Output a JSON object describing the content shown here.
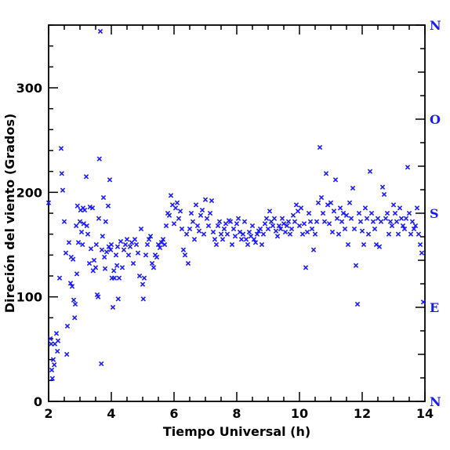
{
  "chart_data": {
    "type": "scatter",
    "title": "",
    "xlabel": "Tiempo Universal (h)",
    "ylabel": "Direción del viento (Grados)",
    "xlim": [
      2,
      14
    ],
    "ylim": [
      0,
      360
    ],
    "x_ticks": [
      "2",
      "4",
      "6",
      "8",
      "10",
      "12",
      "14"
    ],
    "y_ticks": [
      "0",
      "100",
      "200",
      "300"
    ],
    "right_axis_labels": [
      {
        "label": "N",
        "value": 0
      },
      {
        "label": "E",
        "value": 90
      },
      {
        "label": "S",
        "value": 180
      },
      {
        "label": "O",
        "value": 270
      },
      {
        "label": "N",
        "value": 360
      }
    ],
    "marker": "x",
    "marker_color": "#1a1aff",
    "grid": false,
    "points": [
      [
        2.0,
        190
      ],
      [
        2.05,
        60
      ],
      [
        2.08,
        55
      ],
      [
        2.1,
        30
      ],
      [
        2.12,
        22
      ],
      [
        2.15,
        40
      ],
      [
        2.18,
        35
      ],
      [
        2.2,
        55
      ],
      [
        2.25,
        65
      ],
      [
        2.28,
        48
      ],
      [
        2.3,
        58
      ],
      [
        2.35,
        118
      ],
      [
        2.4,
        242
      ],
      [
        2.42,
        218
      ],
      [
        2.45,
        202
      ],
      [
        2.5,
        172
      ],
      [
        2.55,
        142
      ],
      [
        2.58,
        45
      ],
      [
        2.6,
        72
      ],
      [
        2.65,
        152
      ],
      [
        2.7,
        113
      ],
      [
        2.72,
        138
      ],
      [
        2.75,
        110
      ],
      [
        2.78,
        136
      ],
      [
        2.8,
        97
      ],
      [
        2.83,
        80
      ],
      [
        2.85,
        93
      ],
      [
        2.88,
        168
      ],
      [
        2.9,
        122
      ],
      [
        2.92,
        187
      ],
      [
        2.95,
        152
      ],
      [
        3.0,
        172
      ],
      [
        3.02,
        183
      ],
      [
        3.05,
        162
      ],
      [
        3.08,
        150
      ],
      [
        3.1,
        185
      ],
      [
        3.12,
        170
      ],
      [
        3.15,
        183
      ],
      [
        3.2,
        215
      ],
      [
        3.22,
        168
      ],
      [
        3.25,
        160
      ],
      [
        3.3,
        132
      ],
      [
        3.32,
        186
      ],
      [
        3.35,
        146
      ],
      [
        3.4,
        185
      ],
      [
        3.42,
        125
      ],
      [
        3.45,
        135
      ],
      [
        3.5,
        128
      ],
      [
        3.52,
        150
      ],
      [
        3.55,
        102
      ],
      [
        3.58,
        100
      ],
      [
        3.6,
        175
      ],
      [
        3.62,
        232
      ],
      [
        3.65,
        354
      ],
      [
        3.68,
        36
      ],
      [
        3.7,
        145
      ],
      [
        3.72,
        158
      ],
      [
        3.75,
        195
      ],
      [
        3.78,
        138
      ],
      [
        3.8,
        127
      ],
      [
        3.82,
        172
      ],
      [
        3.85,
        143
      ],
      [
        3.9,
        187
      ],
      [
        3.92,
        148
      ],
      [
        3.95,
        212
      ],
      [
        3.98,
        145
      ],
      [
        4.0,
        150
      ],
      [
        4.02,
        118
      ],
      [
        4.05,
        90
      ],
      [
        4.08,
        125
      ],
      [
        4.1,
        118
      ],
      [
        4.15,
        140
      ],
      [
        4.18,
        130
      ],
      [
        4.2,
        148
      ],
      [
        4.22,
        98
      ],
      [
        4.25,
        118
      ],
      [
        4.3,
        153
      ],
      [
        4.35,
        128
      ],
      [
        4.4,
        145
      ],
      [
        4.45,
        150
      ],
      [
        4.5,
        155
      ],
      [
        4.55,
        140
      ],
      [
        4.6,
        148
      ],
      [
        4.65,
        152
      ],
      [
        4.7,
        132
      ],
      [
        4.75,
        155
      ],
      [
        4.8,
        150
      ],
      [
        4.85,
        142
      ],
      [
        4.9,
        120
      ],
      [
        4.95,
        165
      ],
      [
        5.0,
        112
      ],
      [
        5.02,
        98
      ],
      [
        5.05,
        118
      ],
      [
        5.1,
        140
      ],
      [
        5.15,
        150
      ],
      [
        5.2,
        155
      ],
      [
        5.25,
        158
      ],
      [
        5.3,
        132
      ],
      [
        5.35,
        128
      ],
      [
        5.4,
        140
      ],
      [
        5.45,
        138
      ],
      [
        5.5,
        150
      ],
      [
        5.55,
        147
      ],
      [
        5.6,
        152
      ],
      [
        5.65,
        155
      ],
      [
        5.7,
        150
      ],
      [
        5.75,
        168
      ],
      [
        5.8,
        180
      ],
      [
        5.85,
        178
      ],
      [
        5.9,
        197
      ],
      [
        5.95,
        188
      ],
      [
        6.0,
        170
      ],
      [
        6.05,
        185
      ],
      [
        6.1,
        190
      ],
      [
        6.15,
        175
      ],
      [
        6.2,
        182
      ],
      [
        6.25,
        165
      ],
      [
        6.3,
        145
      ],
      [
        6.35,
        140
      ],
      [
        6.4,
        160
      ],
      [
        6.45,
        132
      ],
      [
        6.5,
        165
      ],
      [
        6.55,
        180
      ],
      [
        6.6,
        172
      ],
      [
        6.65,
        155
      ],
      [
        6.7,
        188
      ],
      [
        6.75,
        168
      ],
      [
        6.8,
        163
      ],
      [
        6.85,
        178
      ],
      [
        6.9,
        183
      ],
      [
        6.95,
        160
      ],
      [
        7.0,
        193
      ],
      [
        7.05,
        175
      ],
      [
        7.1,
        168
      ],
      [
        7.15,
        180
      ],
      [
        7.2,
        192
      ],
      [
        7.25,
        162
      ],
      [
        7.3,
        155
      ],
      [
        7.35,
        150
      ],
      [
        7.4,
        168
      ],
      [
        7.45,
        172
      ],
      [
        7.5,
        160
      ],
      [
        7.55,
        155
      ],
      [
        7.6,
        165
      ],
      [
        7.65,
        170
      ],
      [
        7.7,
        160
      ],
      [
        7.75,
        173
      ],
      [
        7.8,
        172
      ],
      [
        7.85,
        150
      ],
      [
        7.9,
        165
      ],
      [
        7.95,
        158
      ],
      [
        8.0,
        170
      ],
      [
        8.05,
        175
      ],
      [
        8.1,
        162
      ],
      [
        8.15,
        155
      ],
      [
        8.2,
        160
      ],
      [
        8.25,
        172
      ],
      [
        8.3,
        155
      ],
      [
        8.35,
        150
      ],
      [
        8.4,
        162
      ],
      [
        8.45,
        158
      ],
      [
        8.5,
        168
      ],
      [
        8.55,
        155
      ],
      [
        8.6,
        152
      ],
      [
        8.65,
        160
      ],
      [
        8.7,
        163
      ],
      [
        8.75,
        165
      ],
      [
        8.8,
        150
      ],
      [
        8.85,
        160
      ],
      [
        8.9,
        170
      ],
      [
        8.95,
        175
      ],
      [
        9.0,
        165
      ],
      [
        9.05,
        182
      ],
      [
        9.1,
        172
      ],
      [
        9.15,
        168
      ],
      [
        9.2,
        175
      ],
      [
        9.25,
        163
      ],
      [
        9.3,
        158
      ],
      [
        9.35,
        168
      ],
      [
        9.4,
        165
      ],
      [
        9.45,
        175
      ],
      [
        9.5,
        170
      ],
      [
        9.55,
        162
      ],
      [
        9.6,
        168
      ],
      [
        9.65,
        172
      ],
      [
        9.7,
        160
      ],
      [
        9.75,
        165
      ],
      [
        9.8,
        178
      ],
      [
        9.85,
        172
      ],
      [
        9.9,
        188
      ],
      [
        9.95,
        182
      ],
      [
        10.0,
        168
      ],
      [
        10.05,
        185
      ],
      [
        10.1,
        160
      ],
      [
        10.15,
        170
      ],
      [
        10.2,
        128
      ],
      [
        10.25,
        162
      ],
      [
        10.3,
        180
      ],
      [
        10.35,
        172
      ],
      [
        10.4,
        165
      ],
      [
        10.45,
        145
      ],
      [
        10.5,
        160
      ],
      [
        10.55,
        172
      ],
      [
        10.6,
        190
      ],
      [
        10.65,
        243
      ],
      [
        10.7,
        195
      ],
      [
        10.75,
        180
      ],
      [
        10.8,
        172
      ],
      [
        10.85,
        218
      ],
      [
        10.9,
        188
      ],
      [
        10.95,
        170
      ],
      [
        11.0,
        190
      ],
      [
        11.05,
        162
      ],
      [
        11.1,
        182
      ],
      [
        11.15,
        212
      ],
      [
        11.2,
        175
      ],
      [
        11.25,
        160
      ],
      [
        11.3,
        185
      ],
      [
        11.35,
        172
      ],
      [
        11.4,
        180
      ],
      [
        11.45,
        165
      ],
      [
        11.5,
        178
      ],
      [
        11.55,
        150
      ],
      [
        11.6,
        190
      ],
      [
        11.65,
        175
      ],
      [
        11.7,
        204
      ],
      [
        11.75,
        165
      ],
      [
        11.8,
        130
      ],
      [
        11.85,
        93
      ],
      [
        11.9,
        180
      ],
      [
        11.95,
        172
      ],
      [
        12.0,
        163
      ],
      [
        12.05,
        150
      ],
      [
        12.1,
        185
      ],
      [
        12.15,
        175
      ],
      [
        12.2,
        160
      ],
      [
        12.25,
        220
      ],
      [
        12.3,
        180
      ],
      [
        12.35,
        172
      ],
      [
        12.4,
        165
      ],
      [
        12.45,
        150
      ],
      [
        12.5,
        175
      ],
      [
        12.55,
        148
      ],
      [
        12.6,
        172
      ],
      [
        12.65,
        205
      ],
      [
        12.7,
        198
      ],
      [
        12.75,
        175
      ],
      [
        12.8,
        180
      ],
      [
        12.85,
        160
      ],
      [
        12.9,
        172
      ],
      [
        12.95,
        168
      ],
      [
        13.0,
        188
      ],
      [
        13.05,
        180
      ],
      [
        13.1,
        172
      ],
      [
        13.15,
        160
      ],
      [
        13.2,
        185
      ],
      [
        13.25,
        175
      ],
      [
        13.3,
        168
      ],
      [
        13.35,
        165
      ],
      [
        13.4,
        175
      ],
      [
        13.45,
        224
      ],
      [
        13.5,
        180
      ],
      [
        13.55,
        160
      ],
      [
        13.6,
        172
      ],
      [
        13.65,
        165
      ],
      [
        13.7,
        168
      ],
      [
        13.75,
        185
      ],
      [
        13.8,
        160
      ],
      [
        13.85,
        150
      ],
      [
        13.9,
        142
      ],
      [
        13.95,
        95
      ]
    ]
  }
}
